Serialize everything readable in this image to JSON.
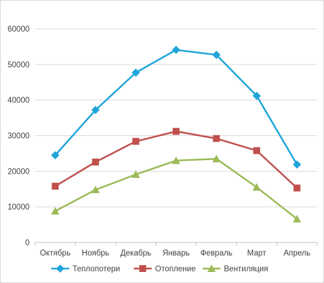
{
  "chart_data": {
    "type": "line",
    "categories": [
      "Октябрь",
      "Ноябрь",
      "Декабрь",
      "Январь",
      "Февраль",
      "Март",
      "Апрель"
    ],
    "series": [
      {
        "name": "Теплопотери",
        "color": "#1fa5d9",
        "marker": "diamond",
        "values": [
          24500,
          37200,
          47700,
          54100,
          52700,
          41200,
          21900
        ]
      },
      {
        "name": "Отопление",
        "color": "#c0504d",
        "marker": "square",
        "values": [
          15800,
          22600,
          28400,
          31200,
          29200,
          25800,
          15300
        ]
      },
      {
        "name": "Вентиляция",
        "color": "#9bbb59",
        "marker": "triangle",
        "values": [
          8800,
          14800,
          19100,
          23000,
          23500,
          15500,
          6600
        ]
      }
    ],
    "ylim": [
      0,
      60000
    ],
    "yticks": [
      "0",
      "10000",
      "20000",
      "30000",
      "40000",
      "50000",
      "60000"
    ],
    "ytick_values": [
      0,
      10000,
      20000,
      30000,
      40000,
      50000,
      60000
    ],
    "grid": true,
    "legend": "bottom",
    "title": "",
    "xlabel": "",
    "ylabel": ""
  }
}
